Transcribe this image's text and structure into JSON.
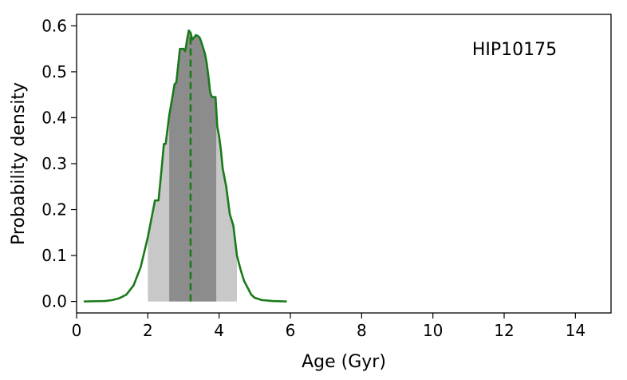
{
  "chart_data": {
    "type": "area",
    "title": "",
    "annotation": "HIP10175",
    "xlabel": "Age (Gyr)",
    "ylabel": "Probability density",
    "xlim": [
      0,
      15
    ],
    "ylim": [
      -0.025,
      0.625
    ],
    "xticks": [
      0,
      2,
      4,
      6,
      8,
      10,
      12,
      14
    ],
    "yticks": [
      0.0,
      0.1,
      0.2,
      0.3,
      0.4,
      0.5,
      0.6
    ],
    "ytick_labels": [
      "0.0",
      "0.1",
      "0.2",
      "0.3",
      "0.4",
      "0.5",
      "0.6"
    ],
    "grid": false,
    "legend": "none",
    "median_age": 3.2,
    "bands": [
      {
        "role": "outer",
        "x_from": 2.0,
        "x_to": 4.5,
        "color": "#c8c8c8"
      },
      {
        "role": "inner",
        "x_from": 2.6,
        "x_to": 3.92,
        "color": "#8c8c8c"
      }
    ],
    "line_color": "#1a7a1a",
    "series": [
      {
        "x": [
          0.2,
          0.8,
          1.0,
          1.2,
          1.4,
          1.6,
          1.8,
          2.0,
          2.1,
          2.2,
          2.3,
          2.4,
          2.45,
          2.5,
          2.6,
          2.7,
          2.75,
          2.8,
          2.9,
          3.0,
          3.05,
          3.1,
          3.15,
          3.2,
          3.25,
          3.3,
          3.35,
          3.4,
          3.45,
          3.5,
          3.6,
          3.65,
          3.7,
          3.75,
          3.8,
          3.85,
          3.9,
          3.95,
          4.0,
          4.05,
          4.1,
          4.2,
          4.3,
          4.4,
          4.5,
          4.6,
          4.7,
          4.8,
          4.9,
          5.0,
          5.2,
          5.5,
          5.9
        ],
        "y": [
          0.0,
          0.001,
          0.003,
          0.007,
          0.015,
          0.035,
          0.075,
          0.14,
          0.18,
          0.22,
          0.22,
          0.3,
          0.343,
          0.343,
          0.405,
          0.45,
          0.473,
          0.477,
          0.55,
          0.55,
          0.545,
          0.57,
          0.59,
          0.585,
          0.57,
          0.575,
          0.58,
          0.578,
          0.575,
          0.565,
          0.54,
          0.52,
          0.49,
          0.455,
          0.445,
          0.445,
          0.445,
          0.38,
          0.36,
          0.33,
          0.29,
          0.25,
          0.19,
          0.165,
          0.1,
          0.07,
          0.045,
          0.03,
          0.015,
          0.008,
          0.003,
          0.001,
          0.0
        ]
      }
    ]
  }
}
